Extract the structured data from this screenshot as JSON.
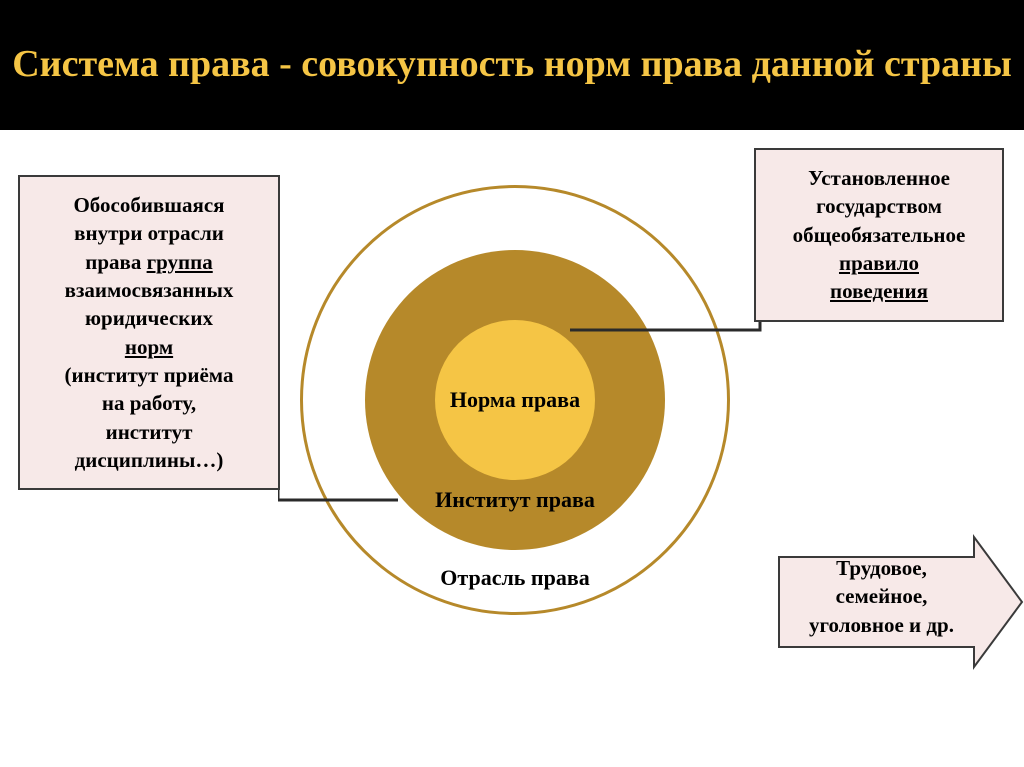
{
  "title": "Система права - совокупность норм права данной страны",
  "title_color": "#f5c545",
  "title_bg": "#000000",
  "title_fontsize": 38,
  "rings": {
    "outer": {
      "diameter": 430,
      "border_color": "#b6892a",
      "fill": "#ffffff",
      "label": "Отрасль права",
      "label_fontsize": 22
    },
    "middle": {
      "diameter": 300,
      "fill": "#b6892a",
      "label": "Институт права",
      "label_fontsize": 22
    },
    "inner": {
      "diameter": 160,
      "fill": "#f5c545",
      "label": "Норма права",
      "label_fontsize": 22
    }
  },
  "info_boxes": {
    "left": {
      "bg": "#f7e9e8",
      "border": "#3a3a3a",
      "fontsize": 21,
      "lines": [
        {
          "t": "Обособившаяся"
        },
        {
          "t": "внутри отрасли"
        },
        {
          "t": "права ",
          "u": "группа"
        },
        {
          "t": "взаимосвязанных"
        },
        {
          "t": "юридических"
        },
        {
          "u": "норм"
        },
        {
          "t": "(институт приёма"
        },
        {
          "t": "на работу,"
        },
        {
          "t": "институт"
        },
        {
          "t": "дисциплины…)"
        }
      ]
    },
    "right": {
      "bg": "#f7e9e8",
      "border": "#3a3a3a",
      "fontsize": 21,
      "lines": [
        {
          "t": "Установленное"
        },
        {
          "t": "государством"
        },
        {
          "t": "общеобязательное"
        },
        {
          "u": "правило"
        },
        {
          "u": "поведения"
        }
      ]
    }
  },
  "arrow": {
    "bg": "#f7e9e8",
    "border": "#3a3a3a",
    "fontsize": 21,
    "text_lines": [
      "Трудовое,",
      "семейное,",
      "уголовное и др."
    ]
  },
  "connectors": {
    "stroke": "#2a2a2a",
    "stroke_width": 3
  }
}
